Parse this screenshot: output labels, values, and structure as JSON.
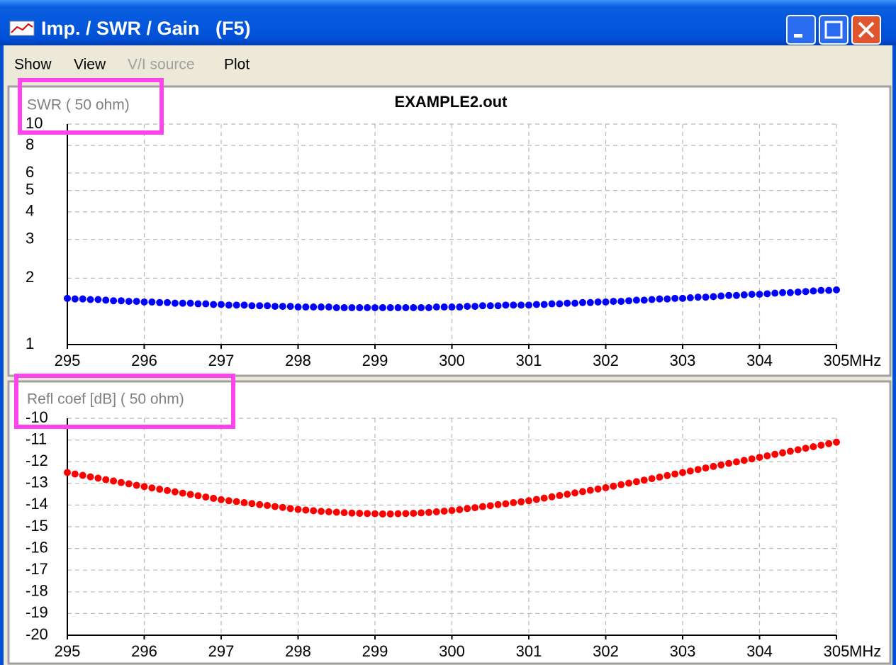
{
  "window": {
    "title": "Imp. / SWR / Gain   (F5)",
    "menu": [
      {
        "label": "Show",
        "enabled": true
      },
      {
        "label": "View",
        "enabled": true
      },
      {
        "label": "V/I source",
        "enabled": false
      },
      {
        "label": "Plot",
        "enabled": true
      }
    ]
  },
  "chart_data": [
    {
      "type": "scatter",
      "title": "EXAMPLE2.out",
      "ylabel": "SWR ( 50 ohm)",
      "xlabel": "MHz",
      "yscale": "log",
      "grid": true,
      "color": "#0000ff",
      "x": [
        295,
        295.1,
        295.2,
        295.3,
        295.4,
        295.5,
        295.6,
        295.7,
        295.8,
        295.9,
        296,
        296.1,
        296.2,
        296.3,
        296.4,
        296.5,
        296.6,
        296.7,
        296.8,
        296.9,
        297,
        297.1,
        297.2,
        297.3,
        297.4,
        297.5,
        297.6,
        297.7,
        297.8,
        297.9,
        298,
        298.1,
        298.2,
        298.3,
        298.4,
        298.5,
        298.6,
        298.7,
        298.8,
        298.9,
        299,
        299.1,
        299.2,
        299.3,
        299.4,
        299.5,
        299.6,
        299.7,
        299.8,
        299.9,
        300,
        300.1,
        300.2,
        300.3,
        300.4,
        300.5,
        300.6,
        300.7,
        300.8,
        300.9,
        301,
        301.1,
        301.2,
        301.3,
        301.4,
        301.5,
        301.6,
        301.7,
        301.8,
        301.9,
        302,
        302.1,
        302.2,
        302.3,
        302.4,
        302.5,
        302.6,
        302.7,
        302.8,
        302.9,
        303,
        303.1,
        303.2,
        303.3,
        303.4,
        303.5,
        303.6,
        303.7,
        303.8,
        303.9,
        304,
        304.1,
        304.2,
        304.3,
        304.4,
        304.5,
        304.6,
        304.7,
        304.8,
        304.9,
        305
      ],
      "values": [
        1.62,
        1.61,
        1.61,
        1.6,
        1.6,
        1.59,
        1.58,
        1.58,
        1.57,
        1.57,
        1.56,
        1.56,
        1.55,
        1.55,
        1.54,
        1.54,
        1.54,
        1.53,
        1.53,
        1.52,
        1.52,
        1.51,
        1.51,
        1.51,
        1.5,
        1.5,
        1.5,
        1.49,
        1.49,
        1.49,
        1.48,
        1.48,
        1.48,
        1.48,
        1.48,
        1.47,
        1.47,
        1.47,
        1.47,
        1.47,
        1.47,
        1.47,
        1.47,
        1.47,
        1.47,
        1.47,
        1.47,
        1.47,
        1.48,
        1.48,
        1.48,
        1.48,
        1.49,
        1.49,
        1.5,
        1.5,
        1.5,
        1.51,
        1.51,
        1.51,
        1.51,
        1.52,
        1.52,
        1.53,
        1.53,
        1.54,
        1.54,
        1.55,
        1.55,
        1.56,
        1.56,
        1.57,
        1.57,
        1.58,
        1.59,
        1.59,
        1.6,
        1.61,
        1.61,
        1.62,
        1.62,
        1.63,
        1.64,
        1.64,
        1.65,
        1.66,
        1.67,
        1.67,
        1.68,
        1.69,
        1.69,
        1.7,
        1.71,
        1.72,
        1.72,
        1.73,
        1.74,
        1.75,
        1.76,
        1.76,
        1.77
      ],
      "xlim": [
        295,
        305
      ],
      "xticks": [
        295,
        296,
        297,
        298,
        299,
        300,
        301,
        302,
        303,
        304,
        305
      ],
      "ylim": [
        1,
        10
      ],
      "yticks": [
        1,
        2,
        3,
        4,
        5,
        6,
        8,
        10
      ]
    },
    {
      "type": "scatter",
      "ylabel": "Refl coef [dB] ( 50 ohm)",
      "xlabel": "MHz",
      "grid": true,
      "color": "#ff0000",
      "x": [
        295,
        295.1,
        295.2,
        295.3,
        295.4,
        295.5,
        295.6,
        295.7,
        295.8,
        295.9,
        296,
        296.1,
        296.2,
        296.3,
        296.4,
        296.5,
        296.6,
        296.7,
        296.8,
        296.9,
        297,
        297.1,
        297.2,
        297.3,
        297.4,
        297.5,
        297.6,
        297.7,
        297.8,
        297.9,
        298,
        298.1,
        298.2,
        298.3,
        298.4,
        298.5,
        298.6,
        298.7,
        298.8,
        298.9,
        299,
        299.1,
        299.2,
        299.3,
        299.4,
        299.5,
        299.6,
        299.7,
        299.8,
        299.9,
        300,
        300.1,
        300.2,
        300.3,
        300.4,
        300.5,
        300.6,
        300.7,
        300.8,
        300.9,
        301,
        301.1,
        301.2,
        301.3,
        301.4,
        301.5,
        301.6,
        301.7,
        301.8,
        301.9,
        302,
        302.1,
        302.2,
        302.3,
        302.4,
        302.5,
        302.6,
        302.7,
        302.8,
        302.9,
        303,
        303.1,
        303.2,
        303.3,
        303.4,
        303.5,
        303.6,
        303.7,
        303.8,
        303.9,
        304,
        304.1,
        304.2,
        304.3,
        304.4,
        304.5,
        304.6,
        304.7,
        304.8,
        304.9,
        305
      ],
      "values": [
        -12.5,
        -12.57,
        -12.63,
        -12.7,
        -12.76,
        -12.83,
        -12.89,
        -12.96,
        -13.02,
        -13.09,
        -13.15,
        -13.21,
        -13.27,
        -13.33,
        -13.39,
        -13.45,
        -13.51,
        -13.57,
        -13.63,
        -13.69,
        -13.75,
        -13.8,
        -13.84,
        -13.89,
        -13.93,
        -13.98,
        -14.02,
        -14.07,
        -14.11,
        -14.16,
        -14.2,
        -14.23,
        -14.26,
        -14.29,
        -14.31,
        -14.33,
        -14.35,
        -14.37,
        -14.38,
        -14.39,
        -14.4,
        -14.41,
        -14.41,
        -14.4,
        -14.39,
        -14.38,
        -14.36,
        -14.34,
        -14.31,
        -14.28,
        -14.25,
        -14.21,
        -14.16,
        -14.12,
        -14.07,
        -14.03,
        -13.98,
        -13.94,
        -13.89,
        -13.85,
        -13.8,
        -13.74,
        -13.68,
        -13.62,
        -13.56,
        -13.5,
        -13.44,
        -13.38,
        -13.32,
        -13.26,
        -13.2,
        -13.13,
        -13.06,
        -12.99,
        -12.92,
        -12.85,
        -12.78,
        -12.71,
        -12.64,
        -12.57,
        -12.5,
        -12.43,
        -12.36,
        -12.29,
        -12.22,
        -12.15,
        -12.08,
        -12.01,
        -11.94,
        -11.87,
        -11.8,
        -11.73,
        -11.66,
        -11.59,
        -11.52,
        -11.45,
        -11.38,
        -11.31,
        -11.24,
        -11.17,
        -11.1
      ],
      "xlim": [
        295,
        305
      ],
      "xticks": [
        295,
        296,
        297,
        298,
        299,
        300,
        301,
        302,
        303,
        304,
        305
      ],
      "ylim": [
        -20,
        -10
      ],
      "yticks": [
        -20,
        -19,
        -18,
        -17,
        -16,
        -15,
        -14,
        -13,
        -12,
        -11,
        -10
      ]
    }
  ]
}
